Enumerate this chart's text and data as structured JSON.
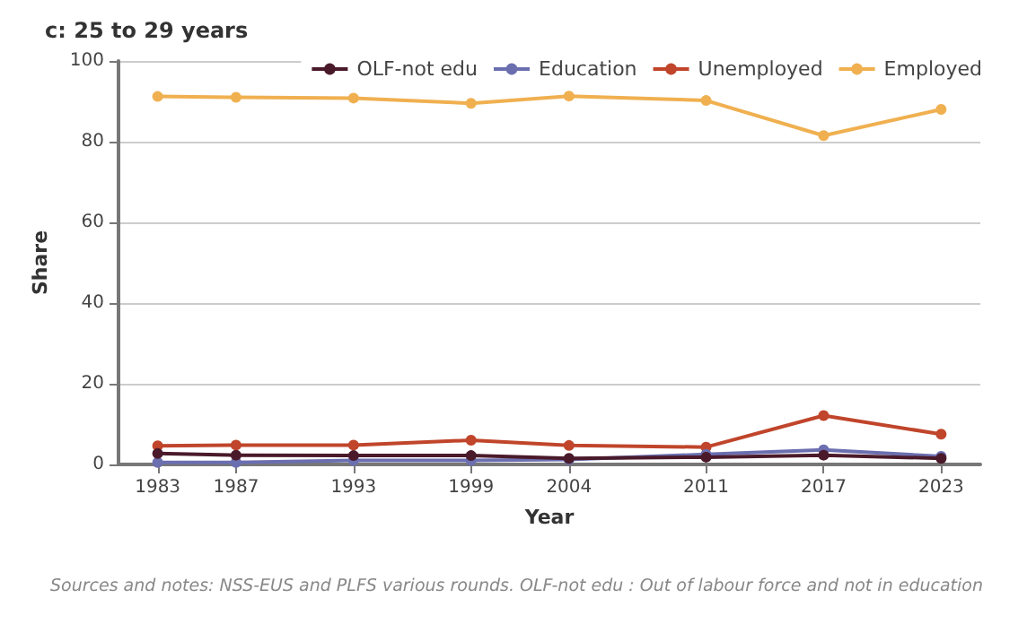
{
  "chart_data": {
    "type": "line",
    "title": "c: 25 to 29 years",
    "xlabel": "Year",
    "ylabel": "Share",
    "x": [
      1983,
      1987,
      1993,
      1999,
      2004,
      2011,
      2017,
      2023
    ],
    "xlim": [
      1981,
      2025
    ],
    "xticks": [
      1983,
      1987,
      1993,
      1999,
      2004,
      2011,
      2017,
      2023
    ],
    "ylim": [
      0,
      100
    ],
    "yticks": [
      0,
      20,
      40,
      60,
      80,
      100
    ],
    "series": [
      {
        "name": "OLF-not edu",
        "color": "#4a1a2a",
        "values": [
          2.7,
          2.3,
          2.2,
          2.2,
          1.5,
          1.8,
          2.3,
          1.5
        ]
      },
      {
        "name": "Education",
        "color": "#6b6fb0",
        "values": [
          0.5,
          0.5,
          1,
          1,
          1.2,
          2.5,
          3.6,
          2
        ]
      },
      {
        "name": "Unemployed",
        "color": "#c0452b",
        "values": [
          4.6,
          4.8,
          4.8,
          6,
          4.7,
          4.3,
          12.1,
          7.5
        ]
      },
      {
        "name": "Employed",
        "color": "#f0b050",
        "values": [
          91.2,
          91,
          90.8,
          89.5,
          91.3,
          90.2,
          81.5,
          88
        ]
      }
    ],
    "grid": "y",
    "legend": "top right",
    "marker": "circle",
    "line_style": "solid",
    "annotations": [
      "Sources and notes: NSS-EUS and PLFS various rounds. OLF-not edu : Out of labour force and not in education"
    ]
  }
}
